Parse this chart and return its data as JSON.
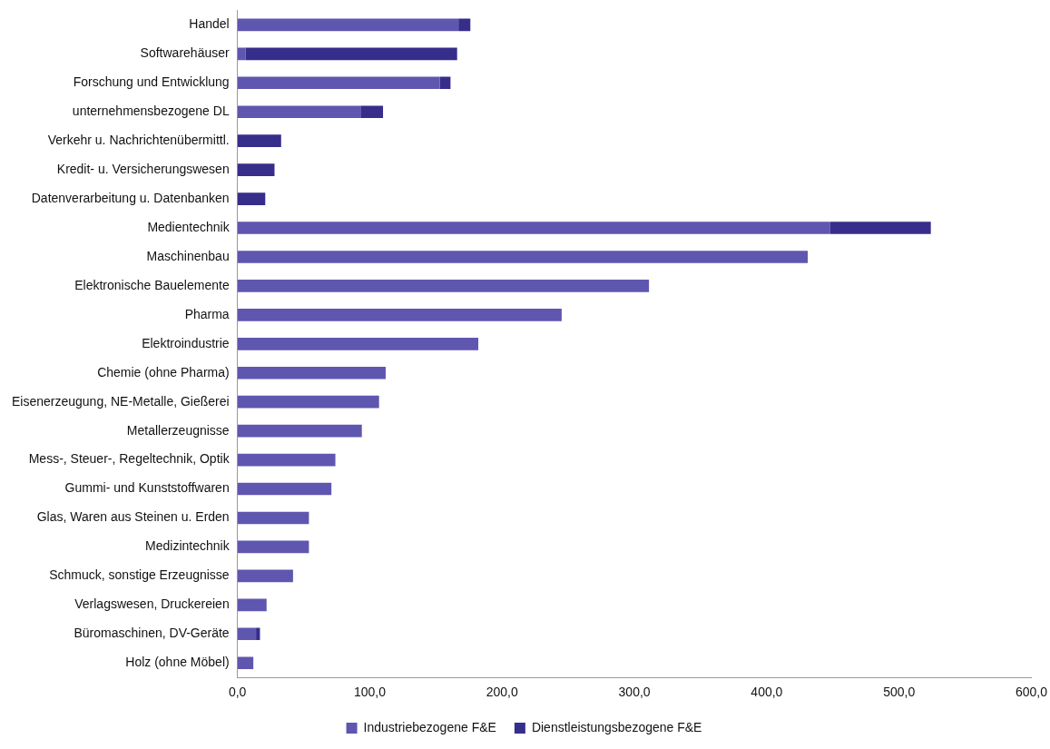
{
  "chart_data": {
    "type": "bar",
    "orientation": "horizontal",
    "stacked": true,
    "categories": [
      "Handel",
      "Softwarehäuser",
      "Forschung und Entwicklung",
      "unternehmensbezogene DL",
      "Verkehr u. Nachrichtenübermittl.",
      "Kredit- u. Versicherungswesen",
      "Datenverarbeitung u. Datenbanken",
      "Medientechnik",
      "Maschinenbau",
      "Elektronische Bauelemente",
      "Pharma",
      "Elektroindustrie",
      "Chemie (ohne Pharma)",
      "Eisenerzeugung, NE-Metalle, Gießerei",
      "Metallerzeugnisse",
      "Mess-, Steuer-, Regeltechnik, Optik",
      "Gummi- und Kunststoffwaren",
      "Glas, Waren aus Steinen u. Erden",
      "Medizintechnik",
      "Schmuck, sonstige Erzeugnisse",
      "Verlagswesen, Druckereien",
      "Büromaschinen, DV-Geräte",
      "Holz (ohne Möbel)"
    ],
    "series": [
      {
        "name": "Industriebezogene F&E",
        "color": "#5f56b0",
        "values": [
          167,
          6,
          153,
          93,
          0,
          0,
          0,
          448,
          431,
          311,
          245,
          182,
          112,
          107,
          94,
          74,
          71,
          54,
          54,
          42,
          22,
          14,
          12
        ]
      },
      {
        "name": "Dienstleistungsbezogene F&E",
        "color": "#372d8a",
        "values": [
          9,
          160,
          8,
          17,
          33,
          28,
          21,
          76,
          0,
          0,
          0,
          0,
          0,
          0,
          0,
          0,
          0,
          0,
          0,
          0,
          0,
          3,
          0
        ]
      }
    ],
    "xlim": [
      0,
      600
    ],
    "xticks": [
      {
        "value": 0,
        "label": "0,0"
      },
      {
        "value": 100,
        "label": "100,0"
      },
      {
        "value": 200,
        "label": "200,0"
      },
      {
        "value": 300,
        "label": "300,0"
      },
      {
        "value": 400,
        "label": "400,0"
      },
      {
        "value": 500,
        "label": "500,0"
      },
      {
        "value": 600,
        "label": "600,0"
      }
    ],
    "legend": "bottom"
  }
}
